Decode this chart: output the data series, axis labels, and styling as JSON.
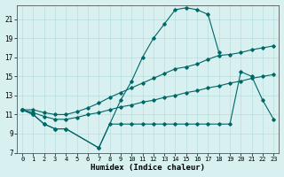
{
  "xlabel": "Humidex (Indice chaleur)",
  "bg_color": "#d8f0f0",
  "grid_color": "#b8dede",
  "line_color": "#006666",
  "xlim": [
    -0.5,
    23.5
  ],
  "ylim": [
    7,
    22.5
  ],
  "yticks": [
    7,
    9,
    11,
    13,
    15,
    17,
    19,
    21
  ],
  "xticks": [
    0,
    1,
    2,
    3,
    4,
    5,
    6,
    7,
    8,
    9,
    10,
    11,
    12,
    13,
    14,
    15,
    16,
    17,
    18,
    19,
    20,
    21,
    22,
    23
  ],
  "curve1_x": [
    0,
    1,
    2,
    3,
    4,
    7,
    9,
    10,
    11,
    12,
    13,
    14,
    15,
    16,
    17,
    18
  ],
  "curve1_y": [
    11.5,
    11.0,
    10.0,
    9.5,
    9.5,
    7.5,
    12.5,
    14.5,
    17.0,
    19.0,
    20.5,
    22.0,
    22.2,
    22.0,
    21.5,
    17.5
  ],
  "curve2_x": [
    0,
    1,
    2,
    3,
    4,
    7,
    8,
    9,
    10,
    11,
    12,
    13,
    14,
    15,
    16,
    17,
    18,
    19,
    20,
    21,
    22,
    23
  ],
  "curve2_y": [
    11.5,
    11.0,
    10.0,
    9.5,
    9.5,
    7.5,
    10.0,
    10.0,
    10.0,
    10.0,
    10.0,
    10.0,
    10.0,
    10.0,
    10.0,
    10.0,
    10.0,
    10.0,
    15.5,
    15.0,
    12.5,
    10.5
  ],
  "curve3_x": [
    0,
    1,
    2,
    3,
    4,
    5,
    6,
    7,
    8,
    9,
    10,
    11,
    12,
    13,
    14,
    15,
    16,
    17,
    18,
    19,
    20,
    21,
    22,
    23
  ],
  "curve3_y": [
    11.5,
    11.2,
    10.8,
    10.5,
    10.5,
    10.7,
    11.0,
    11.2,
    11.5,
    11.8,
    12.0,
    12.3,
    12.5,
    12.8,
    13.0,
    13.3,
    13.5,
    13.8,
    14.0,
    14.3,
    14.5,
    14.8,
    15.0,
    15.2
  ],
  "curve4_x": [
    0,
    1,
    2,
    3,
    4,
    5,
    6,
    7,
    8,
    9,
    10,
    11,
    12,
    13,
    14,
    15,
    16,
    17,
    18,
    19,
    20,
    21,
    22,
    23
  ],
  "curve4_y": [
    11.5,
    11.5,
    11.2,
    11.0,
    11.0,
    11.3,
    11.7,
    12.2,
    12.8,
    13.3,
    13.8,
    14.3,
    14.8,
    15.3,
    15.8,
    16.0,
    16.3,
    16.8,
    17.2,
    17.3,
    17.5,
    17.8,
    18.0,
    18.2
  ]
}
